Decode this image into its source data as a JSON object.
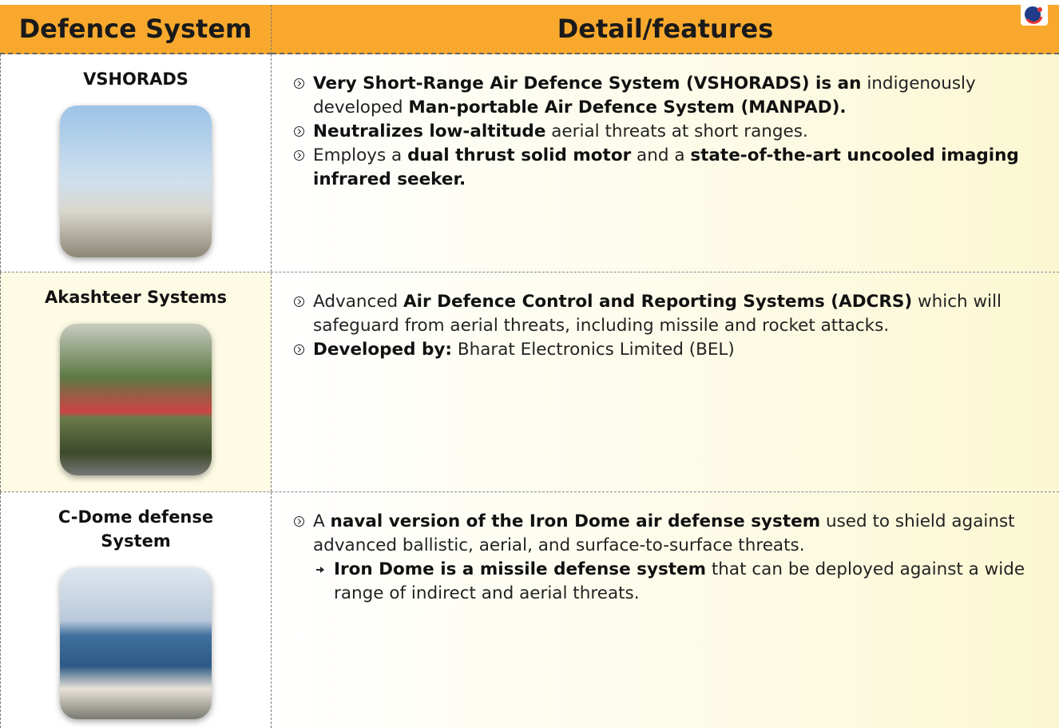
{
  "header": {
    "columns": [
      "Defence System",
      "Detail/features"
    ]
  },
  "rows": [
    {
      "system": "VSHORADS",
      "bullets": [
        {
          "segments": [
            {
              "text": "Very Short-Range Air Defence System (VSHORADS) is an",
              "bold": true
            },
            {
              "text": " indigenously developed ",
              "bold": false
            },
            {
              "text": "Man-portable Air Defence System (MANPAD).",
              "bold": true
            }
          ]
        },
        {
          "segments": [
            {
              "text": "Neutralizes low-altitude",
              "bold": true
            },
            {
              "text": " aerial threats at short ranges.",
              "bold": false
            }
          ]
        },
        {
          "segments": [
            {
              "text": "Employs a ",
              "bold": false
            },
            {
              "text": "dual thrust solid motor",
              "bold": true
            },
            {
              "text": " and a ",
              "bold": false
            },
            {
              "text": "state-of-the-art uncooled imaging infrared seeker.",
              "bold": true
            }
          ]
        }
      ]
    },
    {
      "system": "Akashteer Systems",
      "bullets": [
        {
          "segments": [
            {
              "text": "Advanced ",
              "bold": false
            },
            {
              "text": "Air Defence Control and Reporting Systems (ADCRS)",
              "bold": true
            },
            {
              "text": " which will safeguard from aerial threats, including missile and rocket attacks.",
              "bold": false
            }
          ]
        },
        {
          "segments": [
            {
              "text": "Developed by:",
              "bold": true
            },
            {
              "text": " Bharat Electronics Limited (BEL)",
              "bold": false
            }
          ]
        }
      ]
    },
    {
      "system": "C-Dome defense System",
      "bullets": [
        {
          "segments": [
            {
              "text": "A ",
              "bold": false
            },
            {
              "text": "naval version of the Iron Dome air defense system",
              "bold": true
            },
            {
              "text": " used to shield against advanced ballistic, aerial, and surface-to-surface threats.",
              "bold": false
            }
          ],
          "sub": [
            {
              "segments": [
                {
                  "text": "Iron Dome is a missile defense system",
                  "bold": true
                },
                {
                  "text": " that can be deployed against a wide range of indirect and aerial threats.",
                  "bold": false
                }
              ]
            }
          ]
        }
      ]
    }
  ]
}
